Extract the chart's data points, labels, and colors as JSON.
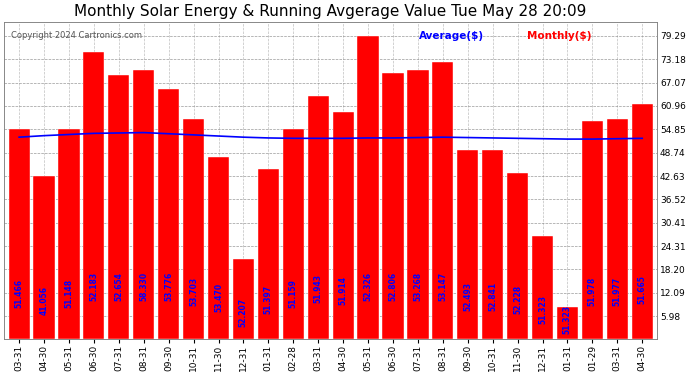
{
  "title": "Monthly Solar Energy & Running Avgerage Value Tue May 28 20:09",
  "copyright": "Copyright 2024 Cartronics.com",
  "legend_avg": "Average($)",
  "legend_monthly": "Monthly($)",
  "categories": [
    "03-31",
    "04-30",
    "05-31",
    "06-30",
    "07-31",
    "08-31",
    "09-30",
    "10-31",
    "11-30",
    "12-31",
    "01-31",
    "02-28",
    "03-31",
    "04-30",
    "05-31",
    "06-30",
    "07-31",
    "08-31",
    "09-30",
    "10-31",
    "11-30",
    "12-31",
    "01-31",
    "01-29",
    "03-31",
    "04-30"
  ],
  "bar_heights": [
    54.85,
    42.63,
    54.85,
    75.0,
    69.0,
    70.5,
    65.5,
    57.5,
    47.5,
    21.0,
    44.5,
    54.85,
    63.5,
    59.5,
    79.29,
    69.5,
    70.5,
    72.5,
    49.5,
    49.5,
    43.5,
    27.0,
    8.5,
    57.0,
    57.5,
    61.5
  ],
  "bar_labels": [
    "51.466",
    "41.056",
    "51.148",
    "52.183",
    "52.654",
    "58.330",
    "53.776",
    "53.703",
    "53.470",
    "52.207",
    "51.397",
    "51.159",
    "51.943",
    "51.914",
    "52.326",
    "52.806",
    "53.268",
    "53.147",
    "52.493",
    "52.841",
    "52.228",
    "51.323",
    "51.323",
    "51.978",
    "51.977",
    "51.665"
  ],
  "avg_values": [
    52.8,
    53.2,
    53.5,
    53.8,
    53.9,
    54.0,
    53.7,
    53.4,
    53.1,
    52.8,
    52.6,
    52.5,
    52.5,
    52.5,
    52.6,
    52.6,
    52.7,
    52.8,
    52.7,
    52.6,
    52.5,
    52.4,
    52.3,
    52.3,
    52.4,
    52.5
  ],
  "bar_color": "#ff0000",
  "avg_line_color": "#0000ff",
  "text_color_on_bar": "#0000ff",
  "background_color": "#ffffff",
  "ylim": [
    0,
    83
  ],
  "yticks": [
    5.98,
    12.09,
    18.2,
    24.31,
    30.41,
    36.52,
    42.63,
    48.74,
    54.85,
    60.96,
    67.07,
    73.18,
    79.29
  ],
  "title_fontsize": 11,
  "label_fontsize": 5.5,
  "tick_fontsize": 6.5
}
